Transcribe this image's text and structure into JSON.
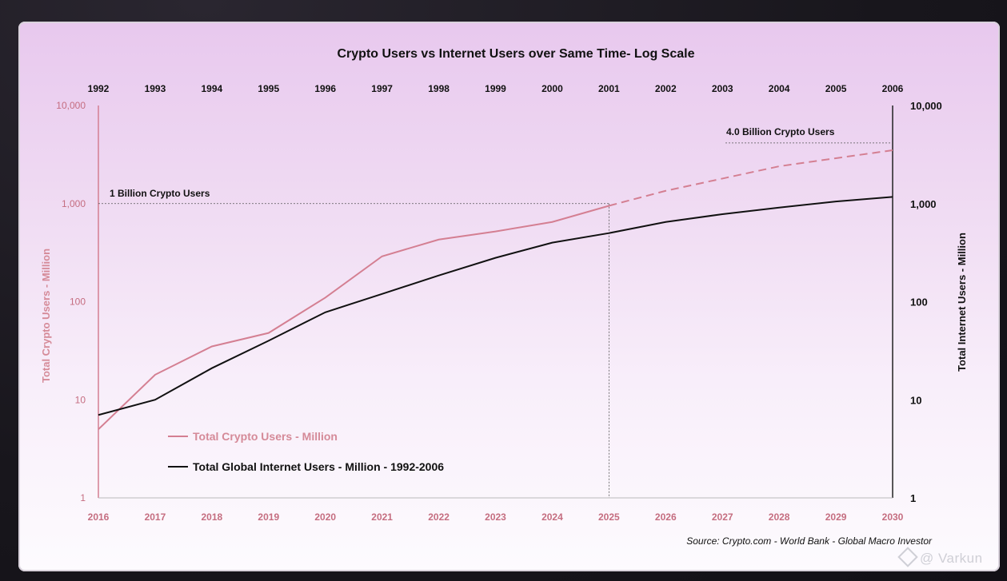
{
  "chart_data": {
    "type": "line",
    "title": "Crypto Users vs Internet Users over Same Time- Log Scale",
    "x_bottom": [
      "2016",
      "2017",
      "2018",
      "2019",
      "2020",
      "2021",
      "2022",
      "2023",
      "2024",
      "2025",
      "2026",
      "2027",
      "2028",
      "2029",
      "2030"
    ],
    "x_top": [
      "1992",
      "1993",
      "1994",
      "1995",
      "1996",
      "1997",
      "1998",
      "1999",
      "2000",
      "2001",
      "2002",
      "2003",
      "2004",
      "2005",
      "2006"
    ],
    "y_scale": "log",
    "ylim": [
      1,
      10000
    ],
    "y_ticks": [
      "1",
      "10",
      "100",
      "1,000",
      "10,000"
    ],
    "ylabel_left": "Total Crypto Users - Million",
    "ylabel_right": "Total Internet Users - Million",
    "series": [
      {
        "name": "Total Crypto Users - Million",
        "color": "#d47f92",
        "x_axis": "bottom",
        "values": [
          5,
          18,
          35,
          48,
          110,
          290,
          430,
          520,
          650,
          950
        ],
        "projection": [
          950,
          1350,
          1800,
          2400,
          2900,
          3500
        ]
      },
      {
        "name": "Total Global Internet Users - Million - 1992-2006",
        "color": "#111111",
        "x_axis": "top",
        "values": [
          7,
          10,
          21,
          40,
          78,
          120,
          185,
          280,
          400,
          500,
          650,
          780,
          910,
          1050,
          1170
        ]
      }
    ],
    "annotations": [
      {
        "text": "1 Billion Crypto Users",
        "value": 1000,
        "ends_at": "2025"
      },
      {
        "text": "4.0 Billion Crypto Users",
        "value": 4000
      }
    ],
    "reference_line_x": "2025",
    "grid": false,
    "legend": "lower-left"
  },
  "source": "Source:  Crypto.com - World Bank - Global Macro Investor",
  "watermark": "@ Varkun",
  "colors": {
    "crypto": "#d47f92",
    "internet": "#111111",
    "axis_left": "#c56d80"
  }
}
